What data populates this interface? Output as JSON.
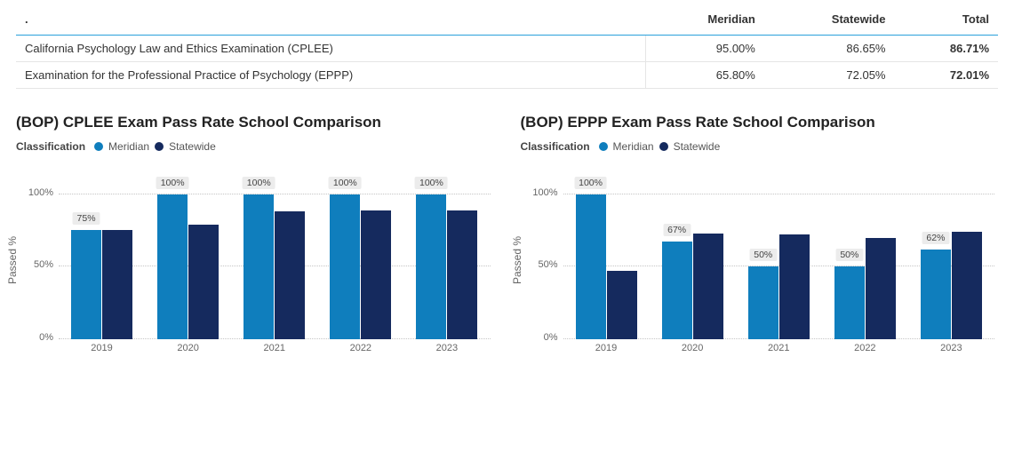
{
  "table": {
    "columns": [
      ".",
      "Meridian",
      "Statewide",
      "Total"
    ],
    "rows": [
      {
        "label": "California Psychology Law and Ethics Examination (CPLEE)",
        "meridian": "95.00%",
        "statewide": "86.65%",
        "total": "86.71%"
      },
      {
        "label": "Examination for the Professional Practice of Psychology (EPPP)",
        "meridian": "65.80%",
        "statewide": "72.05%",
        "total": "72.01%"
      }
    ]
  },
  "legend": {
    "label": "Classification",
    "series": [
      "Meridian",
      "Statewide"
    ]
  },
  "colors": {
    "meridian": "#0f7ebd",
    "statewide": "#152a5e",
    "grid": "#c5c5c5",
    "header_border": "#2aa0db",
    "text": "#333333",
    "bg": "#ffffff",
    "badge_bg": "#ececec"
  },
  "y_axis": {
    "label": "Passed %",
    "ticks": [
      0,
      50,
      100
    ],
    "tick_labels": [
      "0%",
      "50%",
      "100%"
    ],
    "max": 115,
    "min": 0
  },
  "charts": [
    {
      "title": "(BOP) CPLEE Exam Pass Rate School Comparison",
      "type": "bar",
      "categories": [
        "2019",
        "2020",
        "2021",
        "2022",
        "2023"
      ],
      "series": [
        {
          "name": "Meridian",
          "color": "#0f7ebd",
          "values": [
            75,
            100,
            100,
            100,
            100
          ],
          "labels": [
            "75%",
            "100%",
            "100%",
            "100%",
            "100%"
          ]
        },
        {
          "name": "Statewide",
          "color": "#152a5e",
          "values": [
            75,
            79,
            88,
            89,
            89
          ]
        }
      ]
    },
    {
      "title": "(BOP) EPPP Exam Pass Rate School Comparison",
      "type": "bar",
      "categories": [
        "2019",
        "2020",
        "2021",
        "2022",
        "2023"
      ],
      "series": [
        {
          "name": "Meridian",
          "color": "#0f7ebd",
          "values": [
            100,
            67,
            50,
            50,
            62
          ],
          "labels": [
            "100%",
            "67%",
            "50%",
            "50%",
            "62%"
          ]
        },
        {
          "name": "Statewide",
          "color": "#152a5e",
          "values": [
            47,
            73,
            72,
            70,
            74
          ]
        }
      ]
    }
  ]
}
